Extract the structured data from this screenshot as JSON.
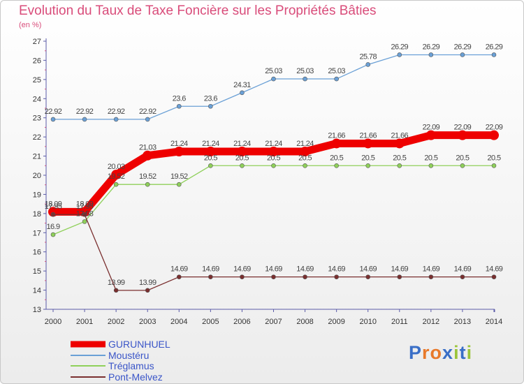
{
  "chart_data": {
    "type": "line",
    "title": "Evolution du Taux de Taxe Foncière sur les Propriétés Bâties",
    "unit_label": "(en %)",
    "xlabel": "",
    "ylabel": "",
    "x": [
      "2000",
      "2001",
      "2002",
      "2003",
      "2004",
      "2005",
      "2006",
      "2007",
      "2008",
      "2009",
      "2010",
      "2011",
      "2012",
      "2013",
      "2014"
    ],
    "ylim": [
      13,
      27
    ],
    "yticks": [
      13,
      14,
      15,
      16,
      17,
      18,
      19,
      20,
      21,
      22,
      23,
      24,
      25,
      26,
      27
    ],
    "series": [
      {
        "name": "GURUNHUEL",
        "color": "#ee0000",
        "emphasis": true,
        "values": [
          18.09,
          18.09,
          20.03,
          21.03,
          21.24,
          21.24,
          21.24,
          21.24,
          21.24,
          21.66,
          21.66,
          21.66,
          22.09,
          22.09,
          22.09
        ],
        "labels": [
          "18.09",
          "18.09",
          "20.03",
          "21.03",
          "21.24",
          "21.24",
          "21.24",
          "21.24",
          "21.24",
          "21.66",
          "21.66",
          "21.66",
          "22.09",
          "22.09",
          "22.09"
        ]
      },
      {
        "name": "Moustéru",
        "color": "#6aa0d6",
        "values": [
          22.92,
          22.92,
          22.92,
          22.92,
          23.6,
          23.6,
          24.31,
          25.03,
          25.03,
          25.03,
          25.78,
          26.29,
          26.29,
          26.29,
          26.29
        ],
        "labels": [
          "22.92",
          "22.92",
          "22.92",
          "22.92",
          "23.6",
          "23.6",
          "24.31",
          "25.03",
          "25.03",
          "25.03",
          "25.78",
          "26.29",
          "26.29",
          "26.29",
          "26.29"
        ]
      },
      {
        "name": "Tréglamus",
        "color": "#8fd05a",
        "values": [
          16.9,
          17.58,
          19.52,
          19.52,
          19.52,
          20.5,
          20.5,
          20.5,
          20.5,
          20.5,
          20.5,
          20.5,
          20.5,
          20.5,
          20.5
        ],
        "labels": [
          "16.9",
          "17.58",
          "19.52",
          "19.52",
          "19.52",
          "20.5",
          "20.5",
          "20.5",
          "20.5",
          "20.5",
          "20.5",
          "20.5",
          "20.5",
          "20.5",
          "20.5"
        ]
      },
      {
        "name": "Pont-Melvez",
        "color": "#7a2f2f",
        "values": [
          17.95,
          17.95,
          13.99,
          13.99,
          14.69,
          14.69,
          14.69,
          14.69,
          14.69,
          14.69,
          14.69,
          14.69,
          14.69,
          14.69,
          14.69
        ],
        "labels": [
          "17.95",
          "17.95",
          "13.99",
          "13.99",
          "14.69",
          "14.69",
          "14.69",
          "14.69",
          "14.69",
          "14.69",
          "14.69",
          "14.69",
          "14.69",
          "14.69",
          "14.69"
        ]
      }
    ],
    "legend_position": "bottom-left",
    "grid": false
  },
  "logo": {
    "text": "Proxiti"
  }
}
